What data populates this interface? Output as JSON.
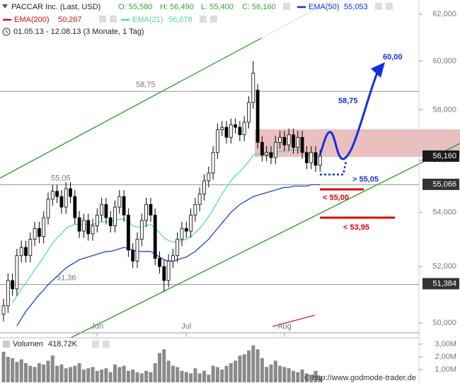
{
  "header": {
    "title": "PACCAR Inc. (Last, USD)",
    "ohlc": [
      "O: 55,580",
      "H: 56,490",
      "L: 55,400",
      "C: 56,160"
    ],
    "period": "01.05.13 - 12.08.13 (3 Monate, 1 Tag)"
  },
  "source": "© http://www.godmode-trader.de",
  "chart_data": {
    "type": "candlestick",
    "log_scale": true,
    "grid": false,
    "up_color": "#ffffff",
    "down_color": "#000000",
    "ylim": [
      49680,
      62610
    ],
    "yticks": [
      {
        "value": 50000,
        "label": "50,000"
      },
      {
        "value": 52000,
        "label": "52,000"
      },
      {
        "value": 54000,
        "label": "54,000"
      },
      {
        "value": 56000,
        "label": "56,000"
      },
      {
        "value": 58000,
        "label": "58,000"
      },
      {
        "value": 60000,
        "label": "60,000"
      },
      {
        "value": 62000,
        "label": "62,000"
      }
    ],
    "categories": [
      null,
      null,
      null,
      null,
      null,
      null,
      null,
      null,
      null,
      null,
      null,
      null,
      null,
      null,
      null,
      null,
      null,
      null,
      null,
      null,
      null,
      "Jun",
      null,
      null,
      null,
      null,
      null,
      null,
      null,
      null,
      null,
      null,
      null,
      null,
      null,
      null,
      null,
      null,
      null,
      null,
      null,
      "Jul",
      null,
      null,
      null,
      null,
      null,
      null,
      null,
      null,
      null,
      null,
      null,
      null,
      null,
      null,
      null,
      null,
      null,
      null,
      null,
      null,
      null,
      "Aug",
      null,
      null,
      null,
      null,
      null,
      null,
      null,
      null
    ],
    "open": [
      50300,
      50600,
      51500,
      51200,
      52400,
      52700,
      52400,
      53000,
      53400,
      53100,
      53800,
      54500,
      54800,
      54600,
      54200,
      54900,
      54600,
      53800,
      53300,
      53700,
      53200,
      53500,
      53900,
      54300,
      53800,
      53500,
      54200,
      54600,
      53900,
      52600,
      52200,
      53000,
      53700,
      54300,
      53900,
      52300,
      52000,
      51500,
      52200,
      52400,
      53000,
      53400,
      53300,
      53900,
      54300,
      54700,
      55200,
      55500,
      56300,
      57200,
      57300,
      56900,
      57400,
      57300,
      57000,
      57500,
      58300,
      58800,
      56700,
      56200,
      56300,
      56100,
      56700,
      56900,
      56600,
      57000,
      56500,
      56900,
      56300,
      55900,
      56300,
      55800
    ],
    "high": [
      50850,
      51750,
      51750,
      52650,
      52950,
      52950,
      53250,
      53650,
      53650,
      54050,
      54750,
      55050,
      55050,
      54850,
      55150,
      55150,
      54850,
      54050,
      53950,
      53950,
      53750,
      54150,
      54550,
      54550,
      54050,
      54450,
      54850,
      54850,
      54150,
      52850,
      53250,
      53950,
      54550,
      54550,
      54150,
      52550,
      52250,
      52450,
      52650,
      53250,
      53650,
      53650,
      54150,
      54550,
      54950,
      55450,
      55750,
      56550,
      57450,
      57550,
      57550,
      57650,
      57650,
      57550,
      57750,
      58550,
      60000,
      59050,
      56950,
      56550,
      56550,
      56950,
      57150,
      57150,
      57250,
      57250,
      57150,
      57150,
      56550,
      56550,
      56550,
      56410
    ],
    "low": [
      50050,
      50350,
      50950,
      50950,
      52150,
      52150,
      52150,
      52750,
      52850,
      52850,
      53550,
      54250,
      54350,
      53950,
      53950,
      54350,
      53550,
      53050,
      53050,
      52950,
      52950,
      53250,
      53650,
      53550,
      53250,
      53250,
      53950,
      53650,
      52350,
      51950,
      51950,
      52750,
      53450,
      53650,
      52050,
      51750,
      51100,
      51250,
      51950,
      52150,
      52750,
      53050,
      53050,
      53650,
      54050,
      54450,
      54950,
      55250,
      56050,
      56950,
      56650,
      56650,
      57050,
      56750,
      56750,
      57250,
      58050,
      56450,
      55950,
      55950,
      55850,
      55850,
      56450,
      56350,
      56350,
      56250,
      56250,
      56050,
      55650,
      55650,
      55550,
      55550
    ],
    "close": [
      50600,
      51500,
      51200,
      52400,
      52700,
      52400,
      53000,
      53400,
      53100,
      53800,
      54500,
      54800,
      54600,
      54200,
      54900,
      54600,
      53800,
      53300,
      53700,
      53200,
      53500,
      53900,
      54300,
      53800,
      53500,
      54200,
      54600,
      53900,
      52600,
      52200,
      53000,
      53700,
      54300,
      53900,
      52300,
      52000,
      51500,
      52200,
      52400,
      53000,
      53400,
      53300,
      53900,
      54300,
      54700,
      55200,
      55500,
      56300,
      57200,
      57300,
      56900,
      57400,
      57300,
      57000,
      57500,
      58300,
      59500,
      56700,
      56200,
      56300,
      56100,
      56700,
      56900,
      56600,
      57000,
      56500,
      56900,
      56300,
      55900,
      56300,
      55800,
      56160
    ],
    "series": [
      {
        "name": "EMA(50)",
        "color": "#1030d0",
        "last_label": "55,053",
        "values": [
          null,
          null,
          null,
          49900,
          50150,
          50400,
          50600,
          50800,
          51000,
          51150,
          51350,
          51500,
          51650,
          51800,
          51950,
          52050,
          52150,
          52250,
          52300,
          52350,
          52400,
          52450,
          52500,
          52550,
          52550,
          52600,
          52650,
          52700,
          52650,
          52600,
          52550,
          52550,
          52550,
          52550,
          52450,
          52350,
          52250,
          52200,
          52200,
          52250,
          52300,
          52350,
          52450,
          52550,
          52700,
          52850,
          53000,
          53200,
          53400,
          53600,
          53800,
          54000,
          54150,
          54300,
          54400,
          54500,
          54600,
          54650,
          54700,
          54750,
          54800,
          54850,
          54900,
          54950,
          54950,
          55000,
          55000,
          55000,
          55000,
          55050,
          55050,
          55053
        ]
      },
      {
        "name": "EMA(200)",
        "color": "#d01010",
        "last_label": "50,267"
      },
      {
        "name": "EMA(21)",
        "color": "#50d8b0",
        "last_label": "56,078",
        "values": [
          null,
          null,
          50700,
          50950,
          51200,
          51400,
          51650,
          51900,
          52100,
          52350,
          52600,
          52850,
          53050,
          53200,
          53400,
          53500,
          53550,
          53550,
          53550,
          53550,
          53550,
          53600,
          53650,
          53650,
          53650,
          53700,
          53750,
          53750,
          53650,
          53500,
          53450,
          53450,
          53500,
          53550,
          53400,
          53250,
          53050,
          52950,
          52900,
          52900,
          52950,
          53000,
          53100,
          53250,
          53400,
          53600,
          53850,
          54100,
          54400,
          54700,
          54950,
          55200,
          55400,
          55550,
          55750,
          55950,
          56200,
          56250,
          56250,
          56250,
          56250,
          56300,
          56350,
          56350,
          56400,
          56400,
          56400,
          56350,
          56300,
          56250,
          56150,
          56078
        ]
      }
    ],
    "levels": [
      {
        "value": 58750,
        "label": "58,75"
      },
      {
        "value": 55050,
        "label": "55,05"
      },
      {
        "value": 51360,
        "label": "51,36"
      }
    ],
    "price_tags": [
      {
        "value": 56160,
        "label": "56,160",
        "color": "#1a1a1a"
      },
      {
        "value": 55066,
        "label": "55,066",
        "color": "#333333"
      },
      {
        "value": 51384,
        "label": "51,384",
        "color": "#333333"
      }
    ],
    "annotations": [
      "60,00",
      "58,75",
      "> 55,05",
      "< 55,00",
      "< 53,95"
    ],
    "volume": {
      "label": "Volumen",
      "last_label": "418,72K",
      "color": "#8a8a8a",
      "ylim": [
        0,
        3500000
      ],
      "yticks": [
        {
          "value": 1000000,
          "label": "1,00M"
        },
        {
          "value": 2000000,
          "label": "2,00M"
        },
        {
          "value": 3000000,
          "label": "3,00M"
        }
      ],
      "values": [
        2400000,
        2000000,
        1900000,
        1600000,
        1800000,
        1500000,
        1300000,
        1200000,
        1500000,
        1400000,
        1700000,
        2100000,
        1300000,
        1400000,
        1100000,
        1200000,
        1300000,
        1500000,
        1000000,
        1100000,
        1200000,
        900000,
        1000000,
        1100000,
        800000,
        1400000,
        1200000,
        1300000,
        900000,
        1000000,
        800000,
        700000,
        900000,
        800000,
        1500000,
        2300000,
        2600000,
        1700000,
        1300000,
        1200000,
        900000,
        800000,
        700000,
        1100000,
        700000,
        900000,
        600000,
        1300000,
        1200000,
        1000000,
        1300000,
        1500000,
        1700000,
        2100000,
        2200000,
        2500000,
        2900000,
        2600000,
        1900000,
        1200000,
        1400000,
        1700000,
        1300000,
        1200000,
        1100000,
        900000,
        800000,
        1000000,
        700000,
        600000,
        900000,
        418720
      ]
    }
  }
}
